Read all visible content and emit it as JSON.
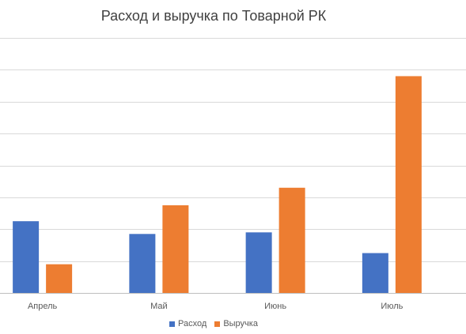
{
  "chart_data": {
    "type": "bar",
    "title": "Расход и выручка по Товарной РК",
    "categories": [
      "Апрель",
      "Май",
      "Июнь",
      "Июль"
    ],
    "series": [
      {
        "name": "Расход",
        "values": [
          22.5,
          18.5,
          19,
          12.5
        ]
      },
      {
        "name": "Выручка",
        "values": [
          9,
          27.5,
          33,
          68
        ]
      }
    ],
    "ylim": [
      0,
      80
    ],
    "grid": true,
    "legend": "bottom",
    "xlabel": "",
    "ylabel": ""
  },
  "colors": {
    "series": [
      "#4472C4",
      "#ED7D31"
    ],
    "grid": "#D9D9D9",
    "axis": "#BFBFBF"
  }
}
